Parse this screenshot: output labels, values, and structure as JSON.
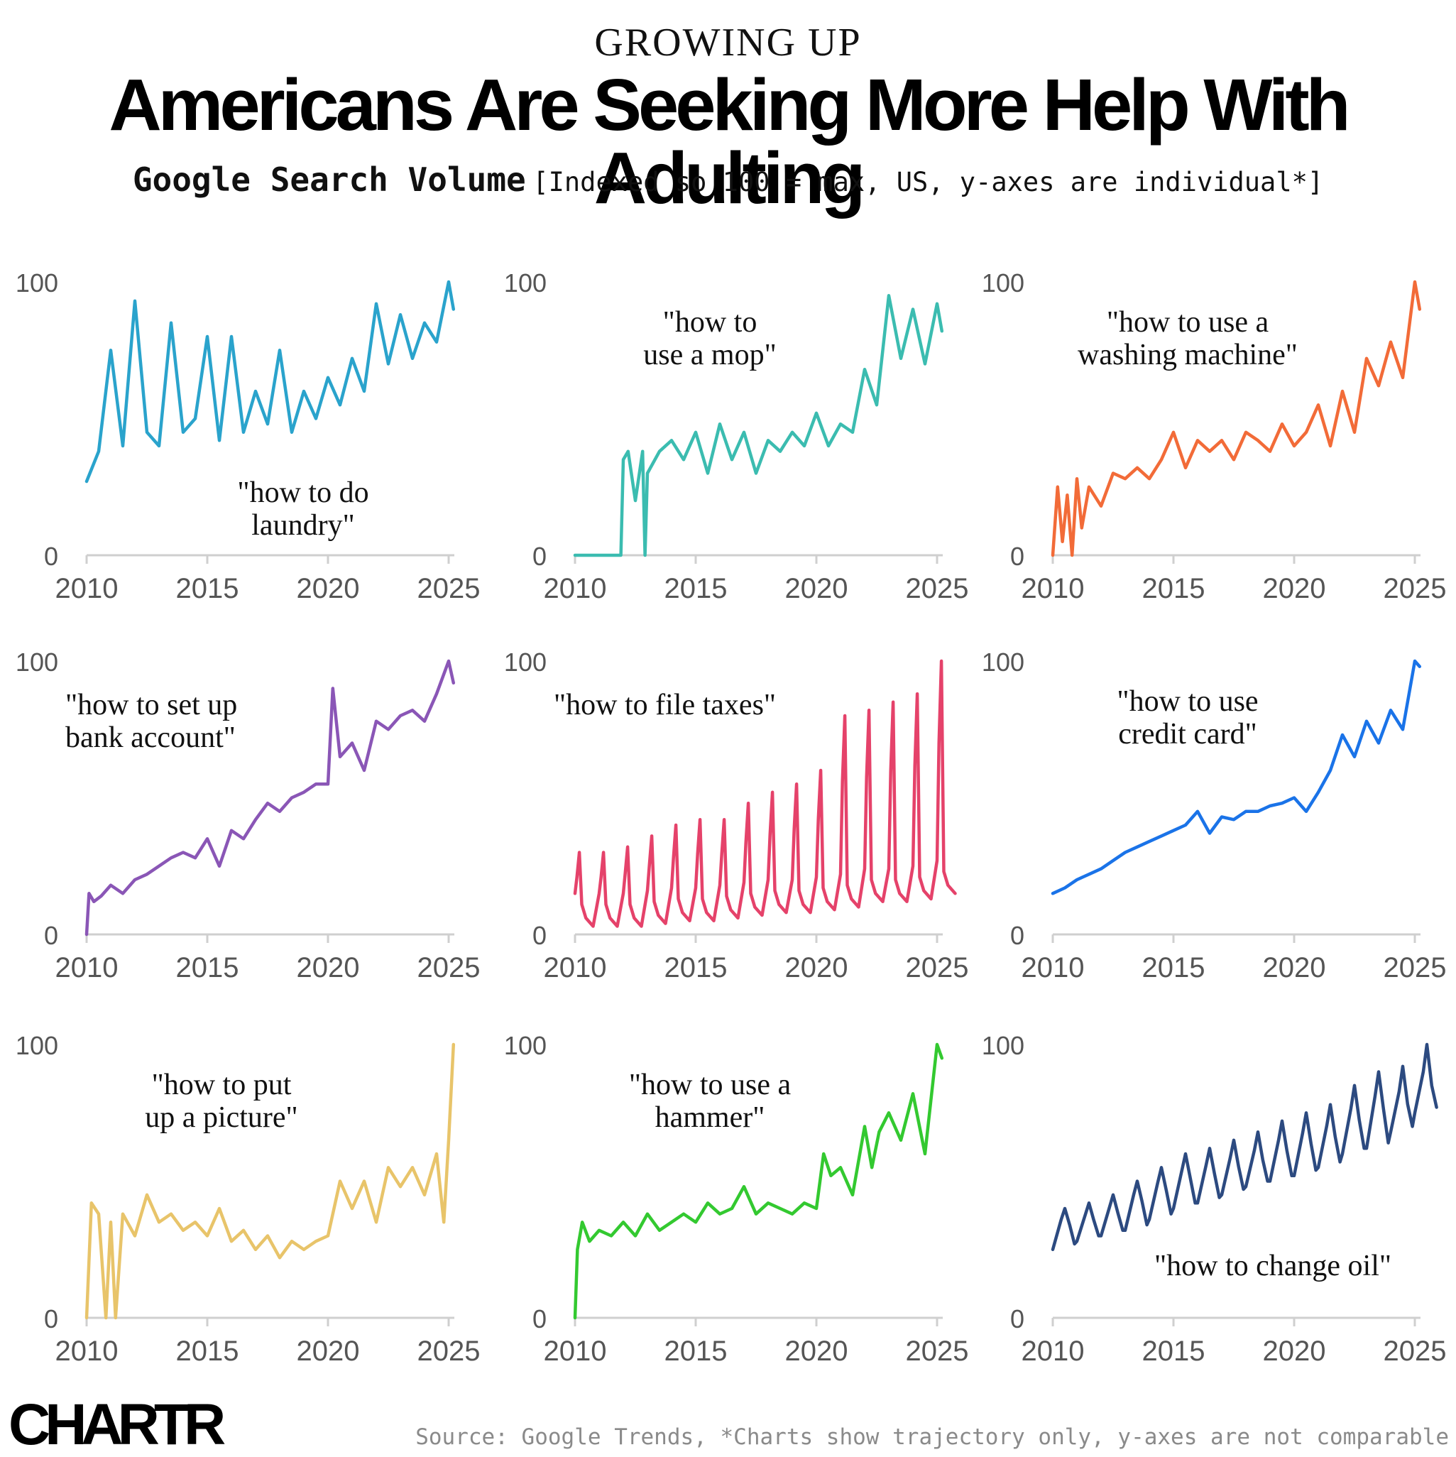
{
  "header": {
    "kicker": "GROWING UP",
    "title": "Americans Are Seeking More Help With Adulting",
    "subtitle_bold": "Google Search Volume",
    "subtitle_rest": "[Indexed so 100 = max, US, y-axes are individual*]"
  },
  "footer": {
    "logo": "CHARTR",
    "source": "Source: Google Trends, *Charts show trajectory only, y-axes are not comparable"
  },
  "chart_data": [
    {
      "type": "line",
      "series_name": "\"how to do laundry\"",
      "color": "#2aa3cc",
      "label_lines": [
        "\"how to do",
        "laundry\""
      ],
      "label_pos": "lower-middle",
      "x_ticks": [
        "2010",
        "2015",
        "2020",
        "2025"
      ],
      "y_ticks": [
        "0",
        "100"
      ],
      "ylim": [
        0,
        100
      ],
      "x": [
        2010.0,
        2010.5,
        2011.0,
        2011.5,
        2012.0,
        2012.5,
        2013.0,
        2013.5,
        2014.0,
        2014.5,
        2015.0,
        2015.5,
        2016.0,
        2016.5,
        2017.0,
        2017.5,
        2018.0,
        2018.5,
        2019.0,
        2019.5,
        2020.0,
        2020.5,
        2021.0,
        2021.5,
        2022.0,
        2022.5,
        2023.0,
        2023.5,
        2024.0,
        2024.5,
        2025.0,
        2025.2
      ],
      "y": [
        27,
        38,
        75,
        40,
        93,
        45,
        40,
        85,
        45,
        50,
        80,
        42,
        80,
        45,
        60,
        48,
        75,
        45,
        60,
        50,
        65,
        55,
        72,
        60,
        92,
        70,
        88,
        72,
        85,
        78,
        100,
        90
      ]
    },
    {
      "type": "line",
      "series_name": "\"how to use a mop\"",
      "color": "#3bbcb0",
      "label_lines": [
        "\"how to",
        "use a mop\""
      ],
      "label_pos": "top-middle",
      "x_ticks": [
        "2010",
        "2015",
        "2020",
        "2025"
      ],
      "y_ticks": [
        "0",
        "100"
      ],
      "ylim": [
        0,
        100
      ],
      "x": [
        2010.0,
        2011.0,
        2011.9,
        2012.0,
        2012.2,
        2012.5,
        2012.8,
        2012.9,
        2013.0,
        2013.5,
        2014.0,
        2014.5,
        2015.0,
        2015.5,
        2016.0,
        2016.5,
        2017.0,
        2017.5,
        2018.0,
        2018.5,
        2019.0,
        2019.5,
        2020.0,
        2020.5,
        2021.0,
        2021.5,
        2022.0,
        2022.5,
        2023.0,
        2023.5,
        2024.0,
        2024.5,
        2025.0,
        2025.2
      ],
      "y": [
        0,
        0,
        0,
        35,
        38,
        20,
        38,
        0,
        30,
        38,
        42,
        35,
        45,
        30,
        48,
        35,
        45,
        30,
        42,
        38,
        45,
        40,
        52,
        40,
        48,
        45,
        68,
        55,
        95,
        72,
        90,
        70,
        92,
        82
      ]
    },
    {
      "type": "line",
      "series_name": "\"how to use a washing machine\"",
      "color": "#f26b38",
      "label_lines": [
        "\"how to use a",
        "washing machine\""
      ],
      "label_pos": "top-middle",
      "x_ticks": [
        "2010",
        "2015",
        "2020",
        "2025"
      ],
      "y_ticks": [
        "0",
        "100"
      ],
      "ylim": [
        0,
        100
      ],
      "x": [
        2010.0,
        2010.2,
        2010.4,
        2010.6,
        2010.8,
        2011.0,
        2011.2,
        2011.5,
        2012.0,
        2012.5,
        2013.0,
        2013.5,
        2014.0,
        2014.5,
        2015.0,
        2015.5,
        2016.0,
        2016.5,
        2017.0,
        2017.5,
        2018.0,
        2018.5,
        2019.0,
        2019.5,
        2020.0,
        2020.5,
        2021.0,
        2021.5,
        2022.0,
        2022.5,
        2023.0,
        2023.5,
        2024.0,
        2024.5,
        2025.0,
        2025.2
      ],
      "y": [
        0,
        25,
        5,
        22,
        0,
        28,
        10,
        25,
        18,
        30,
        28,
        32,
        28,
        35,
        45,
        32,
        42,
        38,
        42,
        35,
        45,
        42,
        38,
        48,
        40,
        45,
        55,
        40,
        60,
        45,
        72,
        62,
        78,
        65,
        100,
        90
      ]
    },
    {
      "type": "line",
      "series_name": "\"how to set up bank account\"",
      "color": "#8a56b6",
      "label_lines": [
        "\"how to set up",
        "bank account\""
      ],
      "label_pos": "top-left",
      "x_ticks": [
        "2010",
        "2015",
        "2020",
        "2025"
      ],
      "y_ticks": [
        "0",
        "100"
      ],
      "ylim": [
        0,
        100
      ],
      "x": [
        2010.0,
        2010.1,
        2010.3,
        2010.6,
        2011.0,
        2011.5,
        2012.0,
        2012.5,
        2013.0,
        2013.5,
        2014.0,
        2014.5,
        2015.0,
        2015.5,
        2016.0,
        2016.5,
        2017.0,
        2017.5,
        2018.0,
        2018.5,
        2019.0,
        2019.5,
        2020.0,
        2020.2,
        2020.5,
        2021.0,
        2021.5,
        2022.0,
        2022.5,
        2023.0,
        2023.5,
        2024.0,
        2024.5,
        2025.0,
        2025.2
      ],
      "y": [
        0,
        15,
        12,
        14,
        18,
        15,
        20,
        22,
        25,
        28,
        30,
        28,
        35,
        25,
        38,
        35,
        42,
        48,
        45,
        50,
        52,
        55,
        55,
        90,
        65,
        70,
        60,
        78,
        75,
        80,
        82,
        78,
        88,
        100,
        92
      ]
    },
    {
      "type": "line",
      "series_name": "\"how to file taxes\"",
      "color": "#e5426a",
      "label_lines": [
        "\"how to file taxes\""
      ],
      "label_pos": "top-left",
      "x_ticks": [
        "2010",
        "2015",
        "2020",
        "2025"
      ],
      "y_ticks": [
        "0",
        "100"
      ],
      "ylim": [
        0,
        100
      ],
      "peaks": [
        30,
        30,
        32,
        36,
        40,
        42,
        42,
        48,
        52,
        55,
        60,
        80,
        82,
        85,
        88,
        100
      ],
      "baseline": [
        3,
        3,
        3,
        4,
        5,
        5,
        6,
        7,
        8,
        8,
        9,
        10,
        12,
        12,
        13,
        15
      ],
      "start_year": 2010
    },
    {
      "type": "line",
      "series_name": "\"how to use credit card\"",
      "color": "#1a73e8",
      "label_lines": [
        "\"how to use",
        "credit card\""
      ],
      "label_pos": "top-middle",
      "x_ticks": [
        "2010",
        "2015",
        "2020",
        "2025"
      ],
      "y_ticks": [
        "0",
        "100"
      ],
      "ylim": [
        0,
        100
      ],
      "x": [
        2010.0,
        2010.5,
        2011.0,
        2011.5,
        2012.0,
        2012.5,
        2013.0,
        2013.5,
        2014.0,
        2014.5,
        2015.0,
        2015.5,
        2016.0,
        2016.5,
        2017.0,
        2017.5,
        2018.0,
        2018.5,
        2019.0,
        2019.5,
        2020.0,
        2020.5,
        2021.0,
        2021.5,
        2022.0,
        2022.5,
        2023.0,
        2023.5,
        2024.0,
        2024.5,
        2025.0,
        2025.2
      ],
      "y": [
        15,
        17,
        20,
        22,
        24,
        27,
        30,
        32,
        34,
        36,
        38,
        40,
        45,
        37,
        43,
        42,
        45,
        45,
        47,
        48,
        50,
        45,
        52,
        60,
        73,
        65,
        78,
        70,
        82,
        75,
        100,
        98
      ]
    },
    {
      "type": "line",
      "series_name": "\"how to put up a picture\"",
      "color": "#e8c46a",
      "label_lines": [
        "\"how to put",
        "up a picture\""
      ],
      "label_pos": "top-middle",
      "x_ticks": [
        "2010",
        "2015",
        "2020",
        "2025"
      ],
      "y_ticks": [
        "0",
        "100"
      ],
      "ylim": [
        0,
        100
      ],
      "x": [
        2010.0,
        2010.2,
        2010.5,
        2010.8,
        2011.0,
        2011.2,
        2011.5,
        2012.0,
        2012.5,
        2013.0,
        2013.5,
        2014.0,
        2014.5,
        2015.0,
        2015.5,
        2016.0,
        2016.5,
        2017.0,
        2017.5,
        2018.0,
        2018.5,
        2019.0,
        2019.5,
        2020.0,
        2020.5,
        2021.0,
        2021.5,
        2022.0,
        2022.5,
        2023.0,
        2023.5,
        2024.0,
        2024.5,
        2024.8,
        2025.0,
        2025.2
      ],
      "y": [
        0,
        42,
        38,
        0,
        35,
        0,
        38,
        30,
        45,
        35,
        38,
        32,
        35,
        30,
        40,
        28,
        32,
        25,
        30,
        22,
        28,
        25,
        28,
        30,
        50,
        40,
        50,
        35,
        55,
        48,
        55,
        45,
        60,
        35,
        65,
        100
      ]
    },
    {
      "type": "line",
      "series_name": "\"how to use a hammer\"",
      "color": "#33c930",
      "label_lines": [
        "\"how to use a",
        "hammer\""
      ],
      "label_pos": "top-middle",
      "x_ticks": [
        "2010",
        "2015",
        "2020",
        "2025"
      ],
      "y_ticks": [
        "0",
        "100"
      ],
      "ylim": [
        0,
        100
      ],
      "x": [
        2010.0,
        2010.1,
        2010.3,
        2010.6,
        2011.0,
        2011.5,
        2012.0,
        2012.5,
        2013.0,
        2013.5,
        2014.0,
        2014.5,
        2015.0,
        2015.5,
        2016.0,
        2016.5,
        2017.0,
        2017.5,
        2018.0,
        2018.5,
        2019.0,
        2019.5,
        2020.0,
        2020.3,
        2020.6,
        2021.0,
        2021.5,
        2022.0,
        2022.3,
        2022.6,
        2023.0,
        2023.5,
        2024.0,
        2024.5,
        2025.0,
        2025.2
      ],
      "y": [
        0,
        25,
        35,
        28,
        32,
        30,
        35,
        30,
        38,
        32,
        35,
        38,
        35,
        42,
        38,
        40,
        48,
        38,
        42,
        40,
        38,
        42,
        40,
        60,
        52,
        55,
        45,
        70,
        55,
        68,
        75,
        65,
        82,
        60,
        100,
        95
      ]
    },
    {
      "type": "line",
      "series_name": "\"how to change oil\"",
      "color": "#2c4a80",
      "label_lines": [
        "\"how to change oil\""
      ],
      "label_pos": "lower-right",
      "x_ticks": [
        "2010",
        "2015",
        "2020",
        "2025"
      ],
      "y_ticks": [
        "0",
        "100"
      ],
      "ylim": [
        0,
        100
      ],
      "peaks": [
        40,
        42,
        45,
        50,
        55,
        60,
        62,
        65,
        68,
        72,
        75,
        78,
        85,
        90,
        92,
        100
      ],
      "troughs": [
        25,
        28,
        30,
        32,
        36,
        40,
        42,
        45,
        48,
        50,
        52,
        55,
        60,
        62,
        68,
        75
      ],
      "start_year": 2010
    }
  ]
}
